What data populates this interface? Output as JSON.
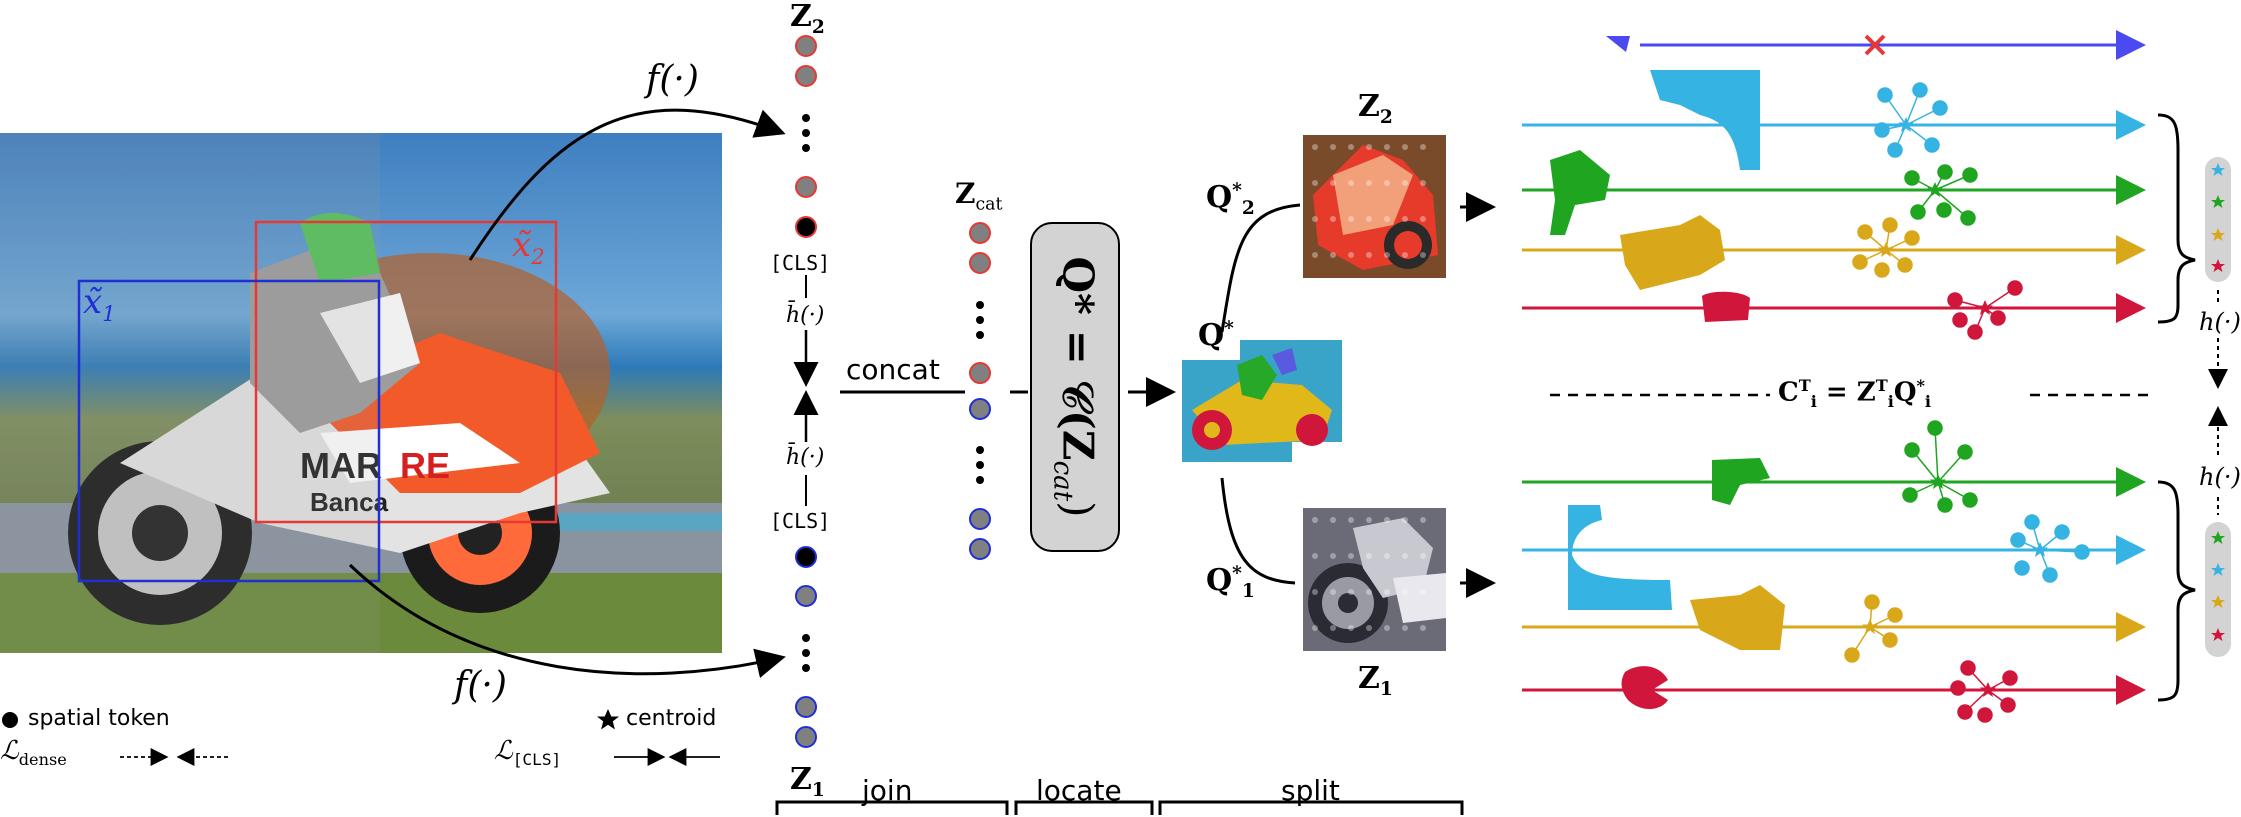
{
  "labels": {
    "z2_top": "Z",
    "z2_top_sub": "2",
    "z1_bottom": "Z",
    "z1_bottom_sub": "1",
    "f_top": "f(·)",
    "f_bottom": "f(·)",
    "cls_top": "[CLS]",
    "cls_bottom": "[CLS]",
    "h_bar_top": "h̄(·)",
    "h_bar_bottom": "h̄(·)",
    "concat": "concat",
    "zcat": "Z",
    "zcat_sub": "cat",
    "q_star_eq": "Q* = 𝒞(Z",
    "q_star_eq_sub": "cat",
    "q_star_eq_end": ")",
    "q2_star": "Q",
    "q2_star_sup": "*",
    "q2_star_sub": "2",
    "q_star": "Q",
    "q_star_sup": "*",
    "q1_star": "Q",
    "q1_star_sup": "*",
    "q1_star_sub": "1",
    "z2_split": "Z",
    "z2_split_sub": "2",
    "z1_split": "Z",
    "z1_split_sub": "1",
    "x1": "x̃",
    "x1_sub": "1",
    "x2": "x̃",
    "x2_sub": "2",
    "h_right_top": "h(·)",
    "h_right_bottom": "h(·)",
    "equation": "C",
    "equation_sub": "i",
    "equation_sup": "T",
    "equation_mid": " = Z",
    "equation_mid_sub": "i",
    "equation_mid_sup": "T",
    "equation_end": "Q",
    "equation_end_sub": "i",
    "equation_end_sup": "*",
    "stage_join": "join",
    "stage_locate": "locate",
    "stage_split": "split"
  },
  "legend": {
    "spatial_token": "spatial token",
    "centroid": "centroid",
    "dense_loss": "ℒ",
    "dense_loss_sub": "dense",
    "cls_loss": "ℒ",
    "cls_loss_sub": "[CLS]"
  },
  "colors": {
    "red": "#e53935",
    "blue": "#1f2fd6",
    "token_fill": "#808080",
    "cyan": "#35b3e3",
    "green": "#1fa51f",
    "gold": "#d8a81a",
    "crimson": "#d0163a",
    "purple_blue": "#4a4af0",
    "box_fill": "#d3d3d3"
  },
  "icons": {
    "spatial_token": "filled-circle",
    "centroid": "star",
    "error_mark": "red-cross"
  }
}
